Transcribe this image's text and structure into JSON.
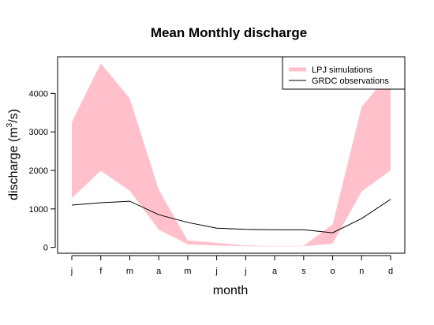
{
  "chart_data": {
    "type": "area",
    "title": "Mean Monthly discharge",
    "xlabel": "month",
    "ylabel_prefix": "discharge (m",
    "ylabel_sup": "3",
    "ylabel_suffix": "/s)",
    "categories": [
      "j",
      "f",
      "m",
      "a",
      "m",
      "j",
      "j",
      "a",
      "s",
      "o",
      "n",
      "d"
    ],
    "yticks": [
      0,
      1000,
      2000,
      3000,
      4000
    ],
    "ylim": [
      -150,
      4950
    ],
    "grid": false,
    "legend_position": "top-right",
    "series": [
      {
        "name": "LPJ simulations",
        "kind": "band",
        "color": "#FFC0CB",
        "upper": [
          3250,
          4780,
          3870,
          1500,
          180,
          120,
          50,
          40,
          40,
          600,
          3650,
          4550
        ],
        "lower": [
          1280,
          1990,
          1470,
          460,
          80,
          50,
          30,
          30,
          30,
          100,
          1450,
          2000
        ]
      },
      {
        "name": "GRDC observations",
        "kind": "line",
        "color": "#000000",
        "values": [
          1100,
          1160,
          1200,
          850,
          650,
          500,
          470,
          460,
          460,
          380,
          750,
          1250
        ]
      }
    ]
  }
}
